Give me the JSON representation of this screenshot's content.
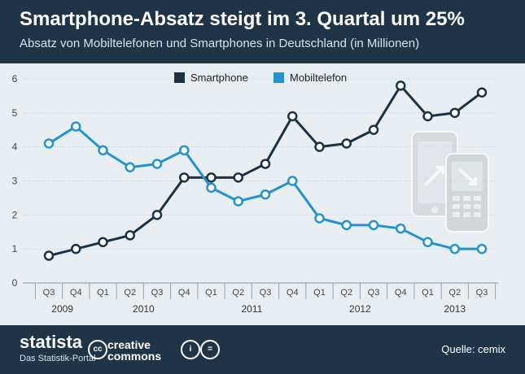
{
  "header": {
    "title": "Smartphone-Absatz steigt im 3. Quartal um 25%",
    "subtitle": "Absatz von Mobiltelefonen und Smartphones in Deutschland (in Millionen)"
  },
  "footer": {
    "logo": "statista",
    "tagline": "Das Statistik-Portal",
    "cc_line1": "creative",
    "cc_line2": "commons",
    "source": "Quelle: cemix"
  },
  "colors": {
    "smartphone": "#1b3246",
    "mobiltelefon": "#1f93d3",
    "grid": "#c7cdd3",
    "text": "#444444"
  },
  "icons": [
    "phones-illustration-icon",
    "statista-logo-icon",
    "creative-commons-icon"
  ],
  "chart_data": {
    "type": "line",
    "title": "Smartphone-Absatz steigt im 3. Quartal um 25%",
    "subtitle": "Absatz von Mobiltelefonen und Smartphones in Deutschland (in Millionen)",
    "categories": [
      "Q3",
      "Q4",
      "Q1",
      "Q2",
      "Q3",
      "Q4",
      "Q1",
      "Q2",
      "Q3",
      "Q4",
      "Q1",
      "Q2",
      "Q3",
      "Q4",
      "Q1",
      "Q2",
      "Q3"
    ],
    "years": [
      {
        "label": "2009",
        "from": 0,
        "to": 1
      },
      {
        "label": "2010",
        "from": 2,
        "to": 5
      },
      {
        "label": "2011",
        "from": 6,
        "to": 9
      },
      {
        "label": "2012",
        "from": 10,
        "to": 13
      },
      {
        "label": "2013",
        "from": 14,
        "to": 16
      }
    ],
    "yticks": [
      0,
      1,
      2,
      3,
      4,
      5,
      6
    ],
    "ylim": [
      0,
      6
    ],
    "grid": true,
    "legend_position": "top-center",
    "series": [
      {
        "name": "Smartphone",
        "color": "#1b3246",
        "values": [
          0.8,
          1.0,
          1.2,
          1.4,
          2.0,
          3.1,
          3.1,
          3.1,
          3.5,
          4.9,
          4.0,
          4.1,
          4.5,
          5.8,
          4.9,
          5.0,
          5.6
        ]
      },
      {
        "name": "Mobiltelefon",
        "color": "#1f93d3",
        "values": [
          4.1,
          4.6,
          3.9,
          3.4,
          3.5,
          3.9,
          2.8,
          2.4,
          2.6,
          3.0,
          1.9,
          1.7,
          1.7,
          1.6,
          1.2,
          1.0,
          1.0
        ]
      }
    ]
  }
}
